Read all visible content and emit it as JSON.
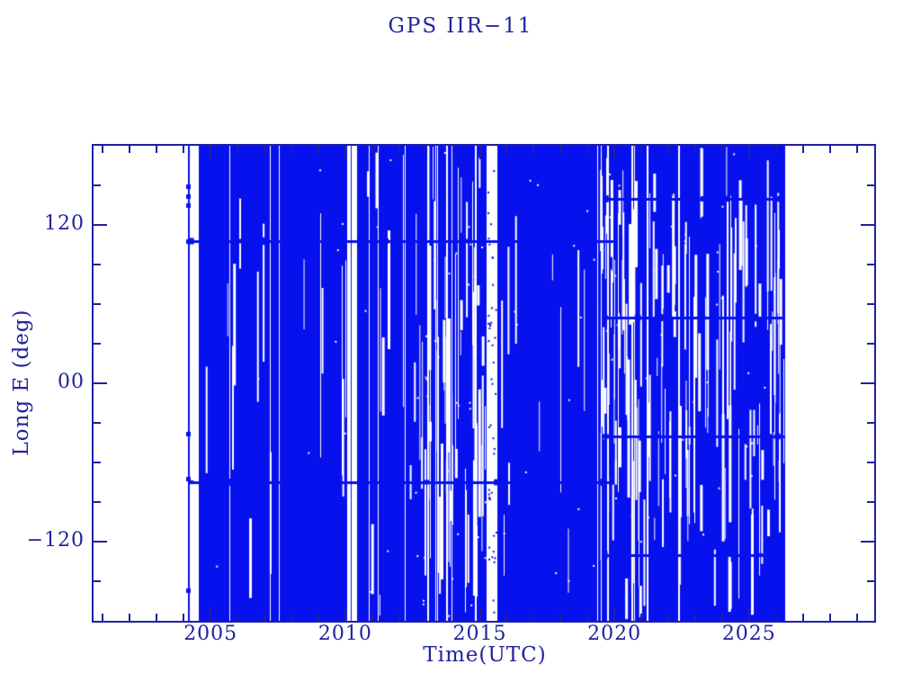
{
  "window": {
    "title": "GPS IIR-11 longitude history plot"
  },
  "chart_data": {
    "type": "scatter",
    "title": "GPS IIR−11",
    "xlabel": "Time(UTC)",
    "ylabel": "Long E (deg)",
    "x_range": [
      2000.65,
      2029.65
    ],
    "y_range": [
      -180,
      180
    ],
    "x_major_ticks": [
      2005,
      2010,
      2015,
      2020,
      2025
    ],
    "x_major_tick_labels": [
      "2005",
      "2010",
      "2015",
      "2020",
      "2025"
    ],
    "x_minor_step_years": 1,
    "y_major_ticks": [
      {
        "value": 120,
        "label": "120"
      },
      {
        "value": 0,
        "label": "00"
      },
      {
        "value": -120,
        "label": "−120"
      }
    ],
    "y_minor_step_deg": 30,
    "grid": false,
    "legend": null,
    "colors": {
      "data": "#0711ee",
      "axis": "#20209e",
      "text": "#22229e",
      "background": "#ffffff"
    },
    "data_start_year": 2004.13,
    "data_end_year": 2026.33,
    "launch_marker": {
      "year": 2004.17,
      "dots_deg": [
        149,
        142,
        135,
        108,
        -38,
        -72,
        -157
      ]
    },
    "coverage_segments": [
      {
        "from": 2004.55,
        "to": 2010.08,
        "stripe_density": 0.05,
        "partial_fraction": 0.3,
        "chunk_count": 10,
        "speckle_count": 8
      },
      {
        "from": 2010.45,
        "to": 2012.55,
        "stripe_density": 0.06,
        "partial_fraction": 0.35,
        "chunk_count": 8,
        "speckle_count": 6
      },
      {
        "from": 2012.55,
        "to": 2015.25,
        "stripe_density": 0.14,
        "partial_fraction": 0.5,
        "chunk_count": 50,
        "speckle_count": 40
      },
      {
        "from": 2015.65,
        "to": 2019.45,
        "stripe_density": 0.025,
        "partial_fraction": 0.35,
        "chunk_count": 10,
        "speckle_count": 15
      },
      {
        "from": 2019.45,
        "to": 2026.33,
        "stripe_density": 0.12,
        "partial_fraction": 0.55,
        "chunk_count": 130,
        "speckle_count": 40
      }
    ],
    "data_gaps": [
      {
        "from": 2010.08,
        "to": 2010.45,
        "fragment": "line",
        "fragment_year": 2010.22
      },
      {
        "from": 2015.25,
        "to": 2015.65,
        "fragment": "dots",
        "dot_count": 45
      }
    ],
    "dense_bands": [
      {
        "deg": 108,
        "from": 2004.2,
        "to": 2020.0
      },
      {
        "deg": -75,
        "from": 2004.2,
        "to": 2020.0
      },
      {
        "deg": 140,
        "from": 2019.55,
        "to": 2026.33
      },
      {
        "deg": 50,
        "from": 2019.55,
        "to": 2026.33
      },
      {
        "deg": -40,
        "from": 2019.55,
        "to": 2026.33
      },
      {
        "deg": -130,
        "from": 2019.55,
        "to": 2026.33
      }
    ],
    "render_seed": 1337
  }
}
